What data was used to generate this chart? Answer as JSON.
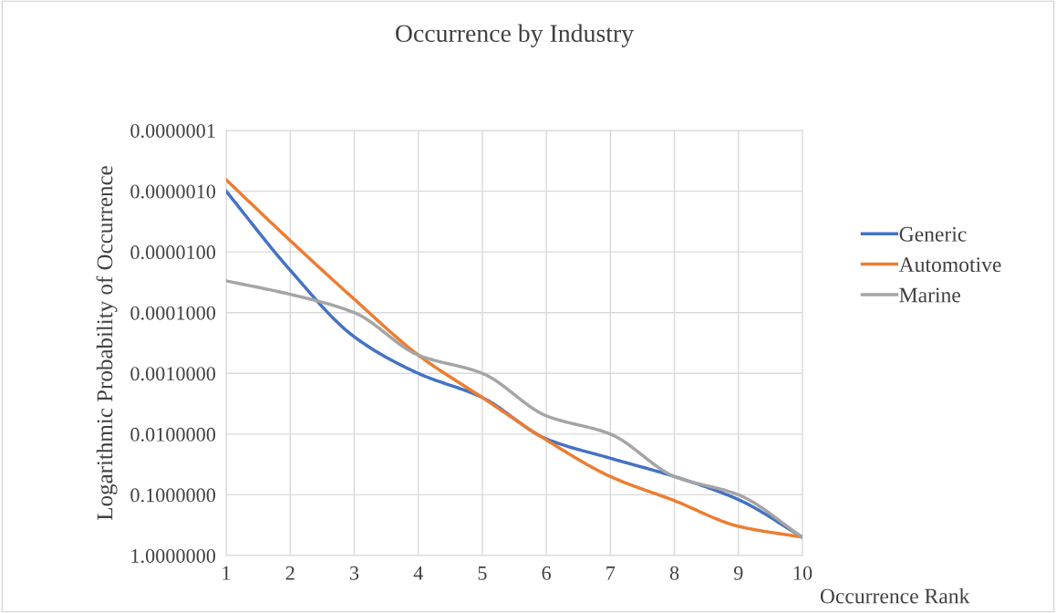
{
  "chart_data": {
    "type": "line",
    "title": "Occurrence by Industry",
    "xlabel": "Occurrence Rank",
    "ylabel": "Logarithmic Probability of Occurrence",
    "x": [
      1,
      2,
      3,
      4,
      5,
      6,
      7,
      8,
      9,
      10
    ],
    "series": [
      {
        "name": "Generic",
        "color": "#4472c4",
        "values": [
          1e-06,
          2e-05,
          0.00025,
          0.001,
          0.0025,
          0.012,
          0.025,
          0.05,
          0.12,
          0.5
        ]
      },
      {
        "name": "Automotive",
        "color": "#ed7d31",
        "values": [
          6.5e-07,
          6.5e-06,
          6e-05,
          0.0005,
          0.0025,
          0.0125,
          0.05,
          0.125,
          0.33,
          0.5
        ]
      },
      {
        "name": "Marine",
        "color": "#a5a5a5",
        "values": [
          3e-05,
          5e-05,
          0.0001,
          0.0005,
          0.001,
          0.005,
          0.01,
          0.05,
          0.1,
          0.5
        ]
      }
    ],
    "log": "y",
    "xlim": [
      1,
      10
    ],
    "xticks": [
      1,
      2,
      3,
      4,
      5,
      6,
      7,
      8,
      9,
      10
    ],
    "ylim": [
      1,
      1e-07
    ],
    "yticks": [
      {
        "value": 1e-07,
        "label": "0.0000001"
      },
      {
        "value": 1e-06,
        "label": "0.0000010"
      },
      {
        "value": 1e-05,
        "label": "0.0000100"
      },
      {
        "value": 0.0001,
        "label": "0.0001000"
      },
      {
        "value": 0.001,
        "label": "0.0010000"
      },
      {
        "value": 0.01,
        "label": "0.0100000"
      },
      {
        "value": 0.1,
        "label": "0.1000000"
      },
      {
        "value": 1,
        "label": "1.0000000"
      }
    ],
    "grid": true,
    "legend": "right",
    "marker": "none",
    "line_style": "solid"
  }
}
